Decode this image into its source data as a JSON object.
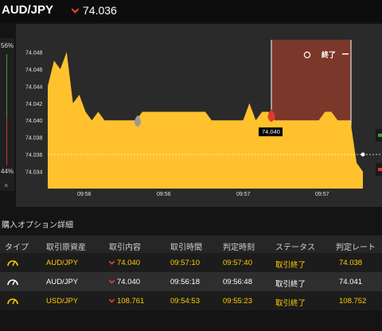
{
  "header": {
    "pair": "AUD/JPY",
    "rate": "74.036"
  },
  "sidebar": {
    "up_pct": "56%",
    "down_pct": "44%",
    "close": "×"
  },
  "chart_data": {
    "type": "area",
    "title": "",
    "xlabel": "",
    "ylabel": "",
    "ylim": [
      74.032,
      74.05
    ],
    "y_ticks": [
      "74.048",
      "74.046",
      "74.044",
      "74.042",
      "74.040",
      "74.038",
      "74.036",
      "74.034"
    ],
    "x_ticks": [
      "09:56",
      "09:56",
      "09:57",
      "09:57"
    ],
    "series": [
      {
        "values": [
          74.044,
          74.047,
          74.046,
          74.048,
          74.042,
          74.043,
          74.041,
          74.04,
          74.041,
          74.04,
          74.04,
          74.04,
          74.04,
          74.04,
          74.04,
          74.041,
          74.041,
          74.041,
          74.041,
          74.041,
          74.041,
          74.041,
          74.041,
          74.041,
          74.041,
          74.041,
          74.04,
          74.04,
          74.04,
          74.04,
          74.04,
          74.04,
          74.042,
          74.04,
          74.041,
          74.041,
          74.04,
          74.04,
          74.04,
          74.04,
          74.04,
          74.04,
          74.04,
          74.04,
          74.041,
          74.041,
          74.04,
          74.04,
          74.04,
          74.035,
          74.034
        ]
      }
    ],
    "current_rate_line": 74.036,
    "entry_marker": {
      "label": "74.040",
      "value": 74.04
    },
    "grey_marker_value": 74.0395,
    "end_panel": {
      "label": "終了"
    }
  },
  "details": {
    "title": "購入オプション詳細",
    "headers": [
      "タイプ",
      "取引原資産",
      "取引内容",
      "取引時間",
      "判定時刻",
      "ステータス",
      "判定レート"
    ],
    "rows": [
      {
        "asset": "AUD/JPY",
        "content": "74.040",
        "time": "09:57:10",
        "judge_time": "09:57:40",
        "status": "取引終了",
        "rate": "74.038"
      },
      {
        "asset": "AUD/JPY",
        "content": "74.040",
        "time": "09:56:18",
        "judge_time": "09:56:48",
        "status": "取引終了",
        "rate": "74.041"
      },
      {
        "asset": "USD/JPY",
        "content": "108.761",
        "time": "09:54:53",
        "judge_time": "09:55:23",
        "status": "取引終了",
        "rate": "108.752"
      }
    ]
  },
  "colors": {
    "area": "#ffc22e",
    "end_panel": "#8b3a2c",
    "down": "#e03a2a",
    "rate_line": "#ffffff"
  }
}
